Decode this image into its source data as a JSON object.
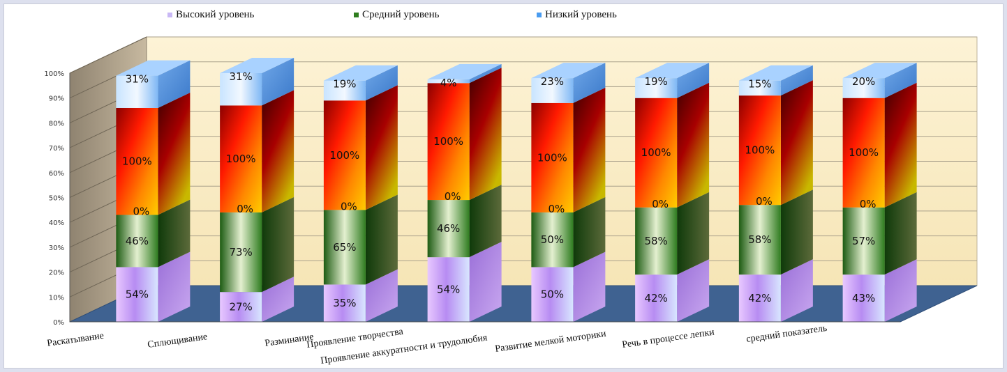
{
  "chart_data": {
    "type": "bar",
    "stacked": true,
    "three_d": true,
    "title": "",
    "xlabel": "",
    "ylabel": "",
    "ylim": [
      0,
      100
    ],
    "yticks": [
      "0%",
      "10%",
      "20%",
      "30%",
      "40%",
      "50%",
      "60%",
      "70%",
      "80%",
      "90%",
      "100%"
    ],
    "legend_position": "top",
    "categories": [
      "Раскатывание",
      "Сплющивание",
      "Разминание",
      "Проявление творчества",
      "Проявление аккуратности  и трудолюбия",
      "Развитие мелкой моторики",
      "Речь в процессе  лепки",
      "средний показатель"
    ],
    "series": [
      {
        "name": "Высокий уровень",
        "color": "#c9b8f5",
        "values": [
          22,
          12,
          15,
          26,
          22,
          19,
          19,
          19
        ],
        "labels": [
          "54%",
          "27%",
          "35%",
          "54%",
          "50%",
          "42%",
          "42%",
          "43%"
        ]
      },
      {
        "name": "Средний уровень",
        "color": "#2e7d1e",
        "values": [
          21,
          32,
          30,
          23,
          22,
          27,
          28,
          27
        ],
        "labels": [
          "46%",
          "73%",
          "65%",
          "46%",
          "50%",
          "58%",
          "58%",
          "57%"
        ]
      },
      {
        "name": "",
        "color": "#ff3300",
        "values": [
          43,
          43,
          44,
          47,
          44,
          44,
          44,
          44
        ],
        "labels": [
          "100%",
          "100%",
          "100%",
          "100%",
          "100%",
          "100%",
          "100%",
          "100%"
        ],
        "base_labels": [
          "0%",
          "0%",
          "0%",
          "0%",
          "0%",
          "0%",
          "0%",
          "0%"
        ]
      },
      {
        "name": "Низкий уровень",
        "color": "#4a9cf0",
        "values": [
          13,
          13,
          8,
          1.5,
          10,
          8,
          6,
          8
        ],
        "labels": [
          "31%",
          "31%",
          "19%",
          "4%",
          "23%",
          "19%",
          "15%",
          "20%"
        ]
      }
    ]
  }
}
